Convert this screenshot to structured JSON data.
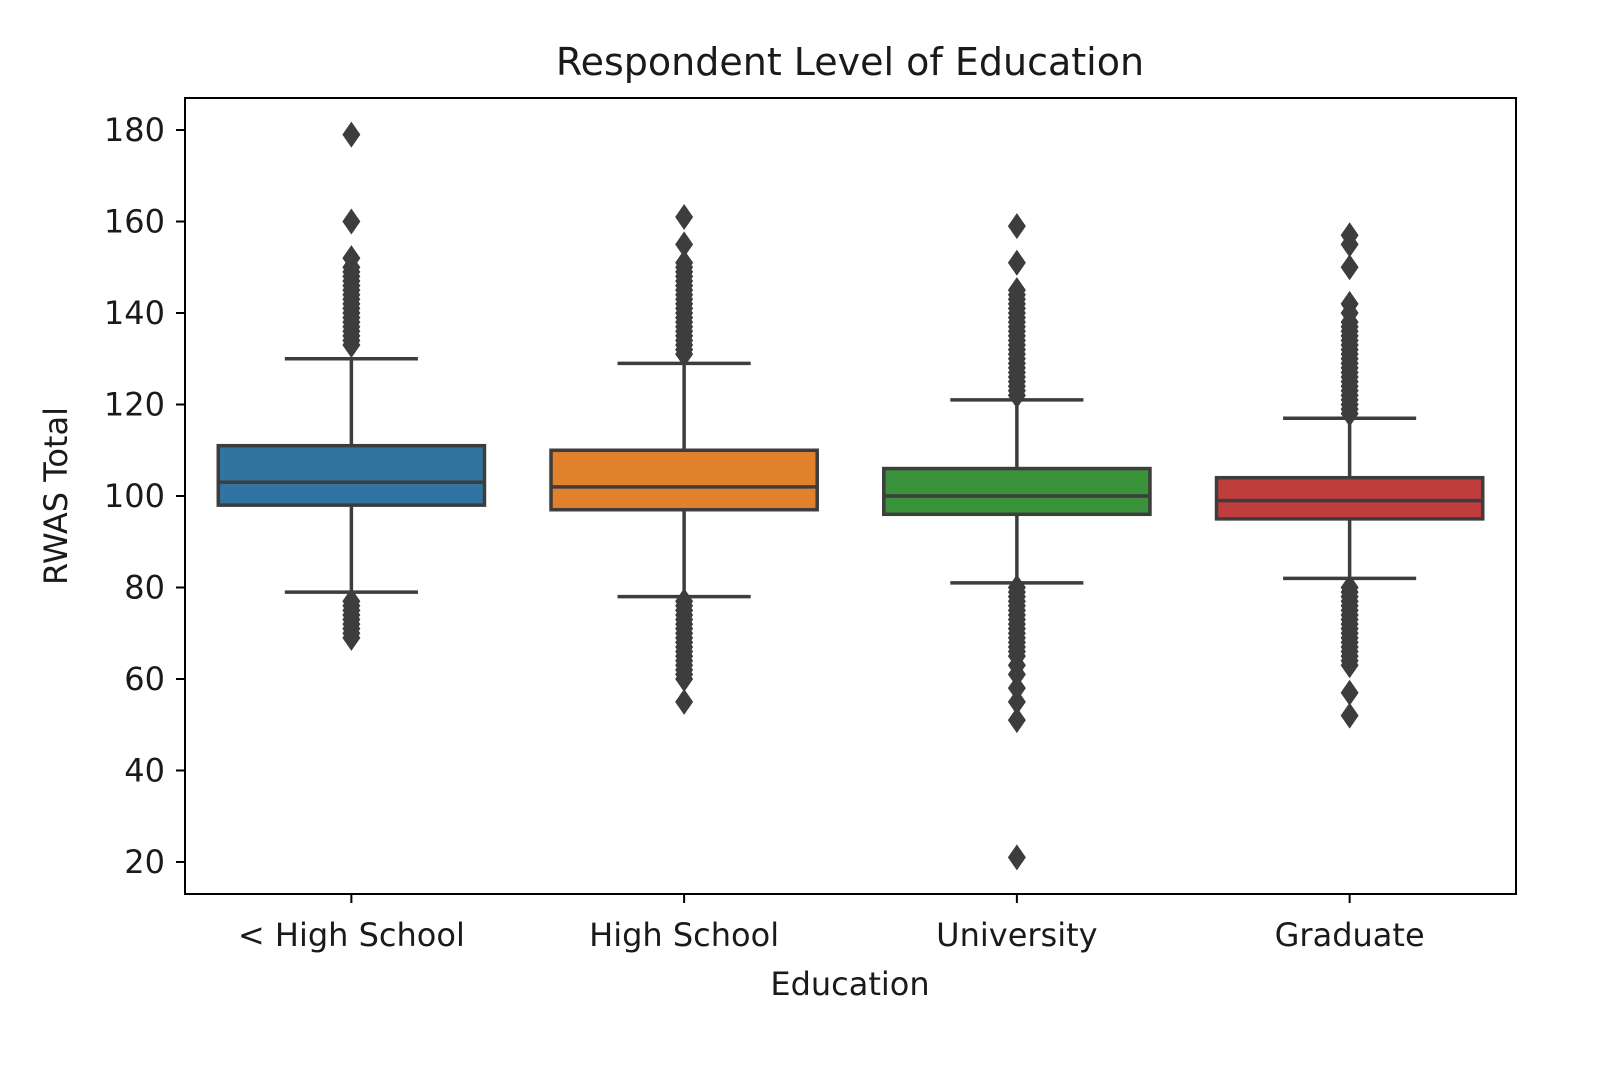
{
  "chart_data": {
    "type": "box",
    "title": "Respondent Level of Education",
    "xlabel": "Education",
    "ylabel": "RWAS Total",
    "ylim": [
      13,
      187
    ],
    "yticks": [
      20,
      40,
      60,
      80,
      100,
      120,
      140,
      160,
      180
    ],
    "grid": false,
    "legend": "none",
    "categories": [
      "< High School",
      "High School",
      "University",
      "Graduate"
    ],
    "boxes": [
      {
        "category": "< High School",
        "color": "#3274a1",
        "whisker_low": 79,
        "q1": 98,
        "median": 103,
        "q3": 111,
        "whisker_high": 130,
        "outliers_high": [
          133,
          134,
          135,
          136,
          137,
          138,
          139,
          140,
          141,
          142,
          143,
          144,
          145,
          146,
          147,
          148,
          149,
          150,
          152,
          160,
          179
        ],
        "outliers_low": [
          69,
          70,
          71,
          72,
          73,
          74,
          75,
          76,
          77
        ]
      },
      {
        "category": "High School",
        "color": "#e1812c",
        "whisker_low": 78,
        "q1": 97,
        "median": 102,
        "q3": 110,
        "whisker_high": 129,
        "outliers_high": [
          131,
          132,
          133,
          134,
          135,
          136,
          137,
          138,
          139,
          140,
          141,
          142,
          143,
          144,
          145,
          146,
          147,
          148,
          149,
          150,
          151,
          155,
          161
        ],
        "outliers_low": [
          55,
          60,
          61,
          62,
          63,
          64,
          65,
          66,
          67,
          68,
          69,
          70,
          71,
          72,
          73,
          74,
          75,
          76,
          77
        ]
      },
      {
        "category": "University",
        "color": "#3a923a",
        "whisker_low": 81,
        "q1": 96,
        "median": 100,
        "q3": 106,
        "whisker_high": 121,
        "outliers_high": [
          122,
          123,
          124,
          125,
          126,
          127,
          128,
          129,
          130,
          131,
          132,
          133,
          134,
          135,
          136,
          137,
          138,
          139,
          140,
          141,
          142,
          143,
          144,
          145,
          151,
          159
        ],
        "outliers_low": [
          21,
          51,
          55,
          58,
          61,
          63,
          65,
          66,
          67,
          68,
          69,
          70,
          71,
          72,
          73,
          74,
          75,
          76,
          77,
          78,
          79,
          80
        ]
      },
      {
        "category": "Graduate",
        "color": "#c03d3e",
        "whisker_low": 82,
        "q1": 95,
        "median": 99,
        "q3": 104,
        "whisker_high": 117,
        "outliers_high": [
          118,
          119,
          120,
          121,
          122,
          123,
          124,
          125,
          126,
          127,
          128,
          129,
          130,
          131,
          132,
          133,
          134,
          135,
          136,
          137,
          138,
          140,
          142,
          150,
          155,
          157
        ],
        "outliers_low": [
          52,
          57,
          63,
          64,
          65,
          66,
          67,
          68,
          69,
          70,
          71,
          72,
          73,
          74,
          75,
          76,
          77,
          78,
          79,
          80
        ]
      }
    ]
  }
}
